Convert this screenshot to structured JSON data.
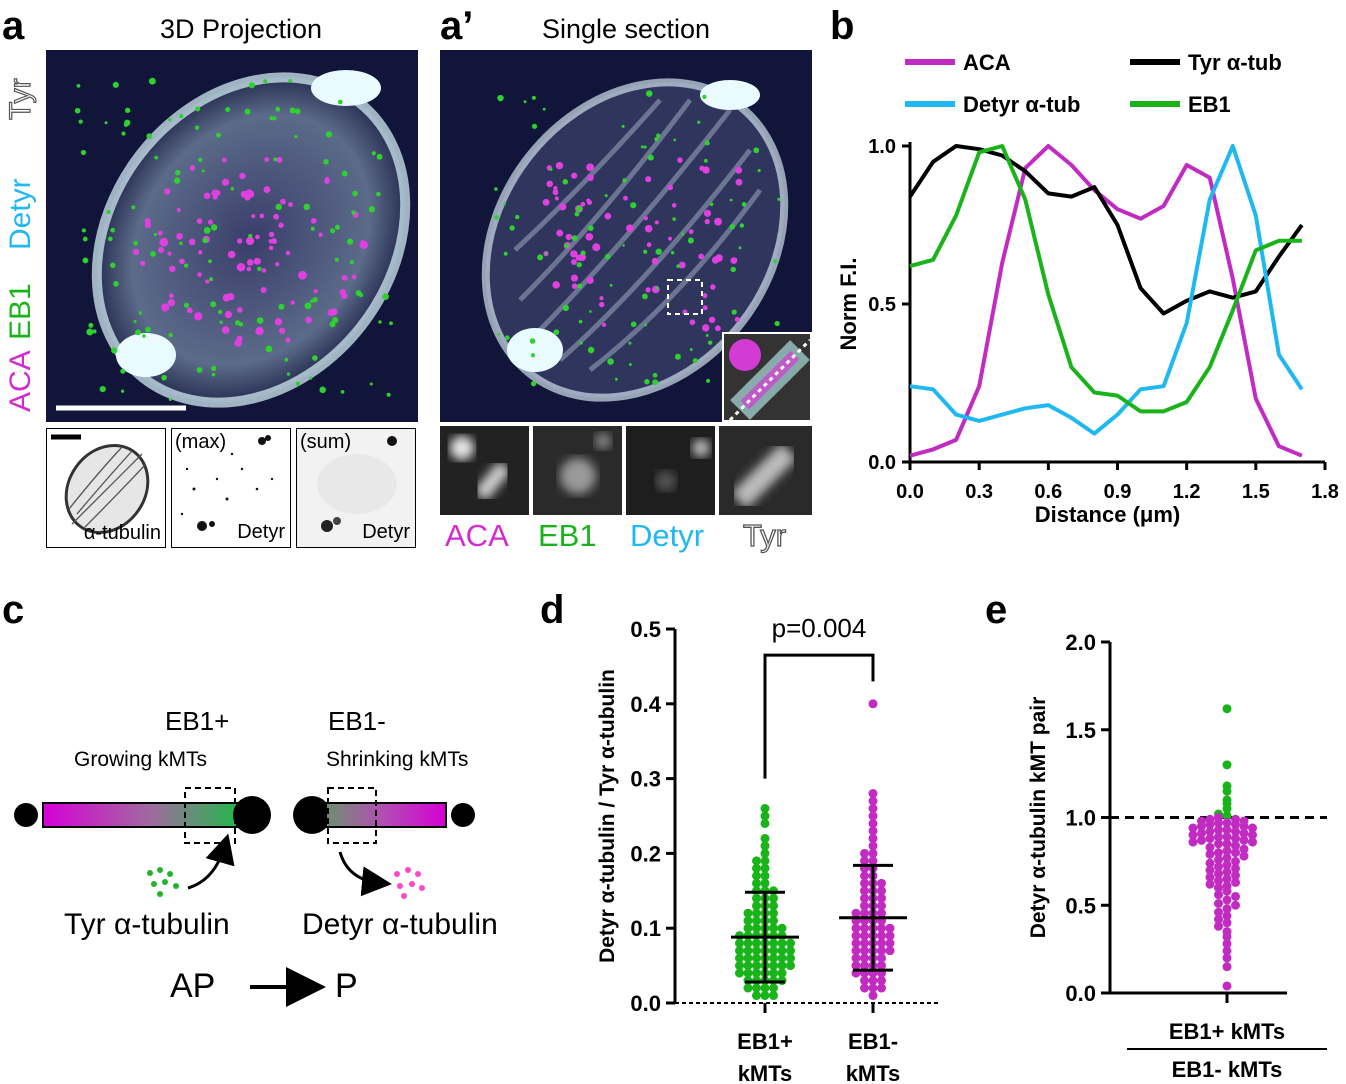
{
  "panel_a": {
    "letter": "a",
    "title": "3D Projection",
    "channels": [
      {
        "label": "ACA",
        "color": "#d22bd0"
      },
      {
        "label": "EB1",
        "color": "#19b419"
      },
      {
        "label": "Detyr",
        "color": "#1fb8f0"
      },
      {
        "label": "Tyr",
        "color": "#ffffff"
      }
    ],
    "insets": [
      {
        "top_label": "",
        "bottom_label": "α-tubulin"
      },
      {
        "top_label": "(max)",
        "bottom_label": "Detyr"
      },
      {
        "top_label": "(sum)",
        "bottom_label": "Detyr"
      }
    ]
  },
  "panel_a2": {
    "letter": "a’",
    "title": "Single section",
    "bottom_channels": [
      {
        "label": "ACA",
        "color": "#d22bd0"
      },
      {
        "label": "EB1",
        "color": "#19b419"
      },
      {
        "label": "Detyr",
        "color": "#1fb8f0"
      },
      {
        "label": "Tyr",
        "color": "#ffffff"
      }
    ]
  },
  "panel_b": {
    "letter": "b",
    "legend": [
      {
        "name": "ACA",
        "color": "#c12bc1"
      },
      {
        "name": "Tyr α-tub",
        "color": "#000000"
      },
      {
        "name": "Detyr α-tub",
        "color": "#1fb8f0"
      },
      {
        "name": "EB1",
        "color": "#1ab31a"
      }
    ],
    "xlabel": "Distance (μm)",
    "ylabel": "Norm F.I.",
    "xticks": [
      "0.0",
      "0.3",
      "0.6",
      "0.9",
      "1.2",
      "1.5",
      "1.8"
    ],
    "yticks": [
      "0.0",
      "0.5",
      "1.0"
    ]
  },
  "panel_c": {
    "letter": "c",
    "eb1_plus": "EB1+",
    "eb1_minus": "EB1-",
    "growing": "Growing kMTs",
    "shrinking": "Shrinking kMTs",
    "tyr": "Tyr α-tubulin",
    "detyr": "Detyr α-tubulin",
    "ap": "AP",
    "p": "P"
  },
  "panel_d": {
    "letter": "d",
    "ylabel": "Detyr α-tubulin / Tyr α-tubulin",
    "pvalue": "p=0.004",
    "yticks": [
      "0.0",
      "0.1",
      "0.2",
      "0.3",
      "0.4",
      "0.5"
    ],
    "categories": [
      {
        "line1": "EB1+",
        "line2": "kMTs"
      },
      {
        "line1": "EB1-",
        "line2": "kMTs"
      }
    ]
  },
  "panel_e": {
    "letter": "e",
    "ylabel": "Detyr α-tubulin kMT pair",
    "yticks": [
      "0.0",
      "0.5",
      "1.0",
      "1.5",
      "2.0"
    ],
    "numerator": "EB1+ kMTs",
    "denominator": "EB1- kMTs"
  },
  "chart_data": [
    {
      "type": "line",
      "xlabel": "Distance (μm)",
      "ylabel": "Norm F.I.",
      "xlim": [
        0,
        1.8
      ],
      "ylim": [
        0,
        1.0
      ],
      "series": [
        {
          "name": "ACA",
          "x": [
            0,
            0.1,
            0.2,
            0.3,
            0.4,
            0.5,
            0.6,
            0.7,
            0.8,
            0.9,
            1.0,
            1.1,
            1.2,
            1.3,
            1.4,
            1.5,
            1.6,
            1.7
          ],
          "y": [
            0.02,
            0.04,
            0.07,
            0.24,
            0.63,
            0.93,
            1.0,
            0.94,
            0.86,
            0.8,
            0.77,
            0.81,
            0.94,
            0.9,
            0.58,
            0.2,
            0.05,
            0.02
          ],
          "color": "#c12bc1"
        },
        {
          "name": "Tyr α-tub",
          "x": [
            0,
            0.1,
            0.2,
            0.3,
            0.4,
            0.5,
            0.6,
            0.7,
            0.8,
            0.9,
            1.0,
            1.1,
            1.2,
            1.3,
            1.4,
            1.5,
            1.6,
            1.7
          ],
          "y": [
            0.84,
            0.95,
            1.0,
            0.99,
            0.97,
            0.92,
            0.85,
            0.84,
            0.87,
            0.75,
            0.55,
            0.47,
            0.51,
            0.54,
            0.52,
            0.54,
            0.65,
            0.75
          ],
          "color": "#000000"
        },
        {
          "name": "Detyr α-tub",
          "x": [
            0,
            0.1,
            0.2,
            0.3,
            0.4,
            0.5,
            0.6,
            0.7,
            0.8,
            0.9,
            1.0,
            1.1,
            1.2,
            1.3,
            1.4,
            1.5,
            1.6,
            1.7
          ],
          "y": [
            0.24,
            0.23,
            0.15,
            0.13,
            0.15,
            0.17,
            0.18,
            0.14,
            0.09,
            0.15,
            0.23,
            0.24,
            0.44,
            0.83,
            1.0,
            0.78,
            0.34,
            0.23
          ],
          "color": "#1fb8f0"
        },
        {
          "name": "EB1",
          "x": [
            0,
            0.1,
            0.2,
            0.3,
            0.4,
            0.5,
            0.6,
            0.7,
            0.8,
            0.9,
            1.0,
            1.1,
            1.2,
            1.3,
            1.4,
            1.5,
            1.6,
            1.7
          ],
          "y": [
            0.62,
            0.64,
            0.78,
            0.98,
            1.0,
            0.83,
            0.53,
            0.3,
            0.22,
            0.21,
            0.16,
            0.16,
            0.19,
            0.3,
            0.48,
            0.67,
            0.7,
            0.7
          ],
          "color": "#1ab31a"
        }
      ]
    },
    {
      "type": "scatter",
      "ylabel": "Detyr α-tubulin / Tyr α-tubulin",
      "ylim": [
        0,
        0.5
      ],
      "categories": [
        "EB1+ kMTs",
        "EB1- kMTs"
      ],
      "series": [
        {
          "color": "#19b419",
          "mean": 0.088,
          "sd_low": 0.028,
          "sd_high": 0.148,
          "values": [
            0.26,
            0.25,
            0.24,
            0.22,
            0.21,
            0.2,
            0.19,
            0.19,
            0.18,
            0.18,
            0.17,
            0.17,
            0.16,
            0.16,
            0.15,
            0.15,
            0.15,
            0.14,
            0.14,
            0.14,
            0.13,
            0.13,
            0.13,
            0.12,
            0.12,
            0.12,
            0.12,
            0.11,
            0.11,
            0.11,
            0.11,
            0.1,
            0.1,
            0.1,
            0.1,
            0.1,
            0.09,
            0.09,
            0.09,
            0.09,
            0.09,
            0.09,
            0.08,
            0.08,
            0.08,
            0.08,
            0.08,
            0.08,
            0.08,
            0.07,
            0.07,
            0.07,
            0.07,
            0.07,
            0.07,
            0.07,
            0.06,
            0.06,
            0.06,
            0.06,
            0.06,
            0.06,
            0.06,
            0.05,
            0.05,
            0.05,
            0.05,
            0.05,
            0.05,
            0.05,
            0.04,
            0.04,
            0.04,
            0.04,
            0.04,
            0.04,
            0.03,
            0.03,
            0.03,
            0.03,
            0.03,
            0.02,
            0.02,
            0.02,
            0.02,
            0.01,
            0.01,
            0.01
          ]
        },
        {
          "color": "#c12bc1",
          "mean": 0.114,
          "sd_low": 0.044,
          "sd_high": 0.184,
          "values": [
            0.4,
            0.28,
            0.27,
            0.26,
            0.25,
            0.24,
            0.23,
            0.22,
            0.21,
            0.2,
            0.2,
            0.19,
            0.19,
            0.18,
            0.18,
            0.17,
            0.17,
            0.16,
            0.16,
            0.16,
            0.15,
            0.15,
            0.15,
            0.14,
            0.14,
            0.14,
            0.13,
            0.13,
            0.13,
            0.12,
            0.12,
            0.12,
            0.12,
            0.11,
            0.11,
            0.11,
            0.11,
            0.1,
            0.1,
            0.1,
            0.1,
            0.1,
            0.09,
            0.09,
            0.09,
            0.09,
            0.09,
            0.08,
            0.08,
            0.08,
            0.08,
            0.08,
            0.07,
            0.07,
            0.07,
            0.07,
            0.07,
            0.06,
            0.06,
            0.06,
            0.06,
            0.05,
            0.05,
            0.05,
            0.05,
            0.04,
            0.04,
            0.04,
            0.04,
            0.03,
            0.03,
            0.03,
            0.02,
            0.02,
            0.02,
            0.01
          ]
        }
      ]
    },
    {
      "type": "scatter",
      "ylabel": "Detyr α-tubulin kMT pair",
      "ylim": [
        0,
        2.0
      ],
      "reference_line": 1.0,
      "values": [
        1.62,
        1.3,
        1.18,
        1.15,
        1.1,
        1.08,
        1.05,
        1.02,
        1.01,
        1.0,
        0.99,
        0.99,
        0.98,
        0.98,
        0.97,
        0.97,
        0.96,
        0.96,
        0.95,
        0.95,
        0.94,
        0.94,
        0.93,
        0.93,
        0.92,
        0.92,
        0.91,
        0.91,
        0.9,
        0.9,
        0.89,
        0.89,
        0.88,
        0.88,
        0.87,
        0.87,
        0.86,
        0.86,
        0.85,
        0.85,
        0.84,
        0.83,
        0.82,
        0.81,
        0.8,
        0.8,
        0.79,
        0.78,
        0.77,
        0.76,
        0.75,
        0.74,
        0.73,
        0.72,
        0.71,
        0.7,
        0.69,
        0.68,
        0.67,
        0.66,
        0.65,
        0.64,
        0.63,
        0.62,
        0.61,
        0.6,
        0.58,
        0.56,
        0.55,
        0.53,
        0.51,
        0.5,
        0.48,
        0.46,
        0.44,
        0.42,
        0.4,
        0.38,
        0.35,
        0.32,
        0.28,
        0.24,
        0.2,
        0.15,
        0.04
      ]
    }
  ]
}
